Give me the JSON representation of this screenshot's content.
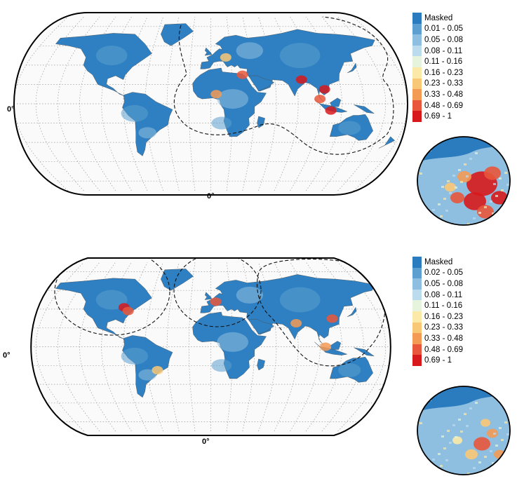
{
  "colors": {
    "ocean": "#fafafa",
    "outline": "#111111",
    "graticule": "#9a9a9a",
    "masked": "#2f80c2",
    "low": "#5b9fd0",
    "mid_low": "#8fc0df"
  },
  "maps": [
    {
      "id": "top",
      "axis_lat_label": "0°",
      "axis_lon_label": "0°",
      "legend": [
        {
          "label": "Masked",
          "color": "#2b7bbf"
        },
        {
          "label": "0.01 - 0.05",
          "color": "#5d9fd1"
        },
        {
          "label": "0.05 - 0.08",
          "color": "#8fbfe0"
        },
        {
          "label": "0.08 - 0.11",
          "color": "#bcdcee"
        },
        {
          "label": "0.11 - 0.16",
          "color": "#e6f3dd"
        },
        {
          "label": "0.16 - 0.23",
          "color": "#fbe9a7"
        },
        {
          "label": "0.23 - 0.33",
          "color": "#f9c877"
        },
        {
          "label": "0.33 - 0.48",
          "color": "#f39a55"
        },
        {
          "label": "0.48 - 0.69",
          "color": "#e8573b"
        },
        {
          "label": "0.69 - 1",
          "color": "#d7191c"
        }
      ],
      "hotspots": [
        {
          "lon": 85,
          "lat": 25,
          "level": "0.69 - 1"
        },
        {
          "lon": 105,
          "lat": 15,
          "level": "0.69 - 1"
        },
        {
          "lon": 110,
          "lat": -7,
          "level": "0.69 - 1"
        },
        {
          "lon": 100,
          "lat": 5,
          "level": "0.48 - 0.69"
        },
        {
          "lon": 5,
          "lat": 10,
          "level": "0.33 - 0.48"
        },
        {
          "lon": 30,
          "lat": 30,
          "level": "0.48 - 0.69"
        },
        {
          "lon": 15,
          "lat": 48,
          "level": "0.23 - 0.33"
        }
      ]
    },
    {
      "id": "bottom",
      "axis_lat_label": "0°",
      "axis_lon_label": "0°",
      "legend": [
        {
          "label": "Masked",
          "color": "#2b7bbf"
        },
        {
          "label": "0.02 - 0.05",
          "color": "#5d9fd1"
        },
        {
          "label": "0.05 - 0.08",
          "color": "#8fbfe0"
        },
        {
          "label": "0.08 - 0.11",
          "color": "#bcdcee"
        },
        {
          "label": "0.11 - 0.16",
          "color": "#e6f3dd"
        },
        {
          "label": "0.16 - 0.23",
          "color": "#fbe9a7"
        },
        {
          "label": "0.23 - 0.33",
          "color": "#f9c877"
        },
        {
          "label": "0.33 - 0.48",
          "color": "#f39a55"
        },
        {
          "label": "0.48 - 0.69",
          "color": "#e8573b"
        },
        {
          "label": "0.69 - 1",
          "color": "#d7191c"
        }
      ],
      "hotspots": [
        {
          "lon": -85,
          "lat": 42,
          "level": "0.69 - 1"
        },
        {
          "lon": -80,
          "lat": 38,
          "level": "0.48 - 0.69"
        },
        {
          "lon": 5,
          "lat": 48,
          "level": "0.48 - 0.69"
        },
        {
          "lon": 115,
          "lat": 30,
          "level": "0.48 - 0.69"
        },
        {
          "lon": 80,
          "lat": 25,
          "level": "0.33 - 0.48"
        },
        {
          "lon": -50,
          "lat": -25,
          "level": "0.23 - 0.33"
        },
        {
          "lon": 105,
          "lat": 0,
          "level": "0.33 - 0.48"
        }
      ]
    }
  ]
}
